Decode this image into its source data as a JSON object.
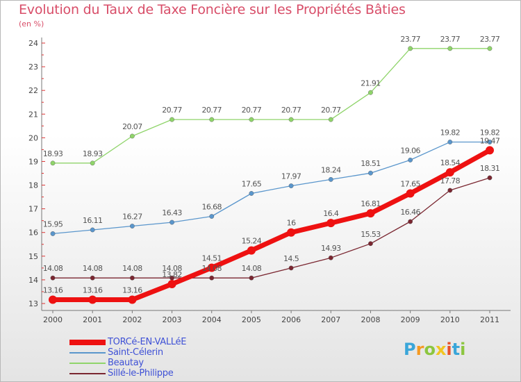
{
  "title": "Evolution du Taux de Taxe Foncière sur les Propriétés Bâties",
  "subtitle": "(en %)",
  "brand": {
    "text": "Proxiti",
    "colors": [
      "#3aa6d9",
      "#f59a22",
      "#8cc63f",
      "#f2c522",
      "#e8522a",
      "#3aa6d9",
      "#8cc63f"
    ]
  },
  "chart_data": {
    "type": "line",
    "title": "Evolution du Taux de Taxe Foncière sur les Propriétés Bâties",
    "ylabel": "(en %)",
    "xlabel": "",
    "x": [
      "2000",
      "2001",
      "2002",
      "2003",
      "2004",
      "2005",
      "2006",
      "2007",
      "2008",
      "2009",
      "2010",
      "2011"
    ],
    "ylim": [
      13,
      24
    ],
    "yticks": [
      "13",
      "14",
      "15",
      "16",
      "17",
      "18",
      "19",
      "20",
      "21",
      "22",
      "23",
      "24"
    ],
    "grid": false,
    "legend_position": "bottom-left",
    "series": [
      {
        "name": "TORCé-EN-VALLéE",
        "color": "#ee1111",
        "values": [
          13.16,
          13.16,
          13.16,
          13.82,
          14.51,
          15.24,
          16,
          16.4,
          16.81,
          17.65,
          18.54,
          19.47
        ],
        "labels": [
          "13.16",
          "13.16",
          "13.16",
          "13.82",
          "14.51",
          "15.24",
          "16",
          "16.4",
          "16.81",
          "17.65",
          "18.54",
          "19.47"
        ]
      },
      {
        "name": "Saint-Célerin",
        "color": "#5a96cc",
        "values": [
          15.95,
          16.11,
          16.27,
          16.43,
          16.68,
          17.65,
          17.97,
          18.24,
          18.51,
          19.06,
          19.82,
          19.82
        ],
        "labels": [
          "15.95",
          "16.11",
          "16.27",
          "16.43",
          "16.68",
          "17.65",
          "17.97",
          "18.24",
          "18.51",
          "19.06",
          "19.82",
          "19.82"
        ]
      },
      {
        "name": "Beautay",
        "color": "#8fd46a",
        "values": [
          18.93,
          18.93,
          20.07,
          20.77,
          20.77,
          20.77,
          20.77,
          20.77,
          21.91,
          23.77,
          23.77,
          23.77
        ],
        "labels": [
          "18.93",
          "18.93",
          "20.07",
          "20.77",
          "20.77",
          "20.77",
          "20.77",
          "20.77",
          "21.91",
          "23.77",
          "23.77",
          "23.77"
        ]
      },
      {
        "name": "Sillé-le-Philippe",
        "color": "#7a2630",
        "values": [
          14.08,
          14.08,
          14.08,
          14.08,
          14.08,
          14.08,
          14.5,
          14.93,
          15.53,
          16.46,
          17.78,
          18.31
        ],
        "labels": [
          "14.08",
          "14.08",
          "14.08",
          "14.08",
          "14.08",
          "14.08",
          "14.5",
          "14.93",
          "15.53",
          "16.46",
          "17.78",
          "18.31"
        ]
      }
    ]
  }
}
